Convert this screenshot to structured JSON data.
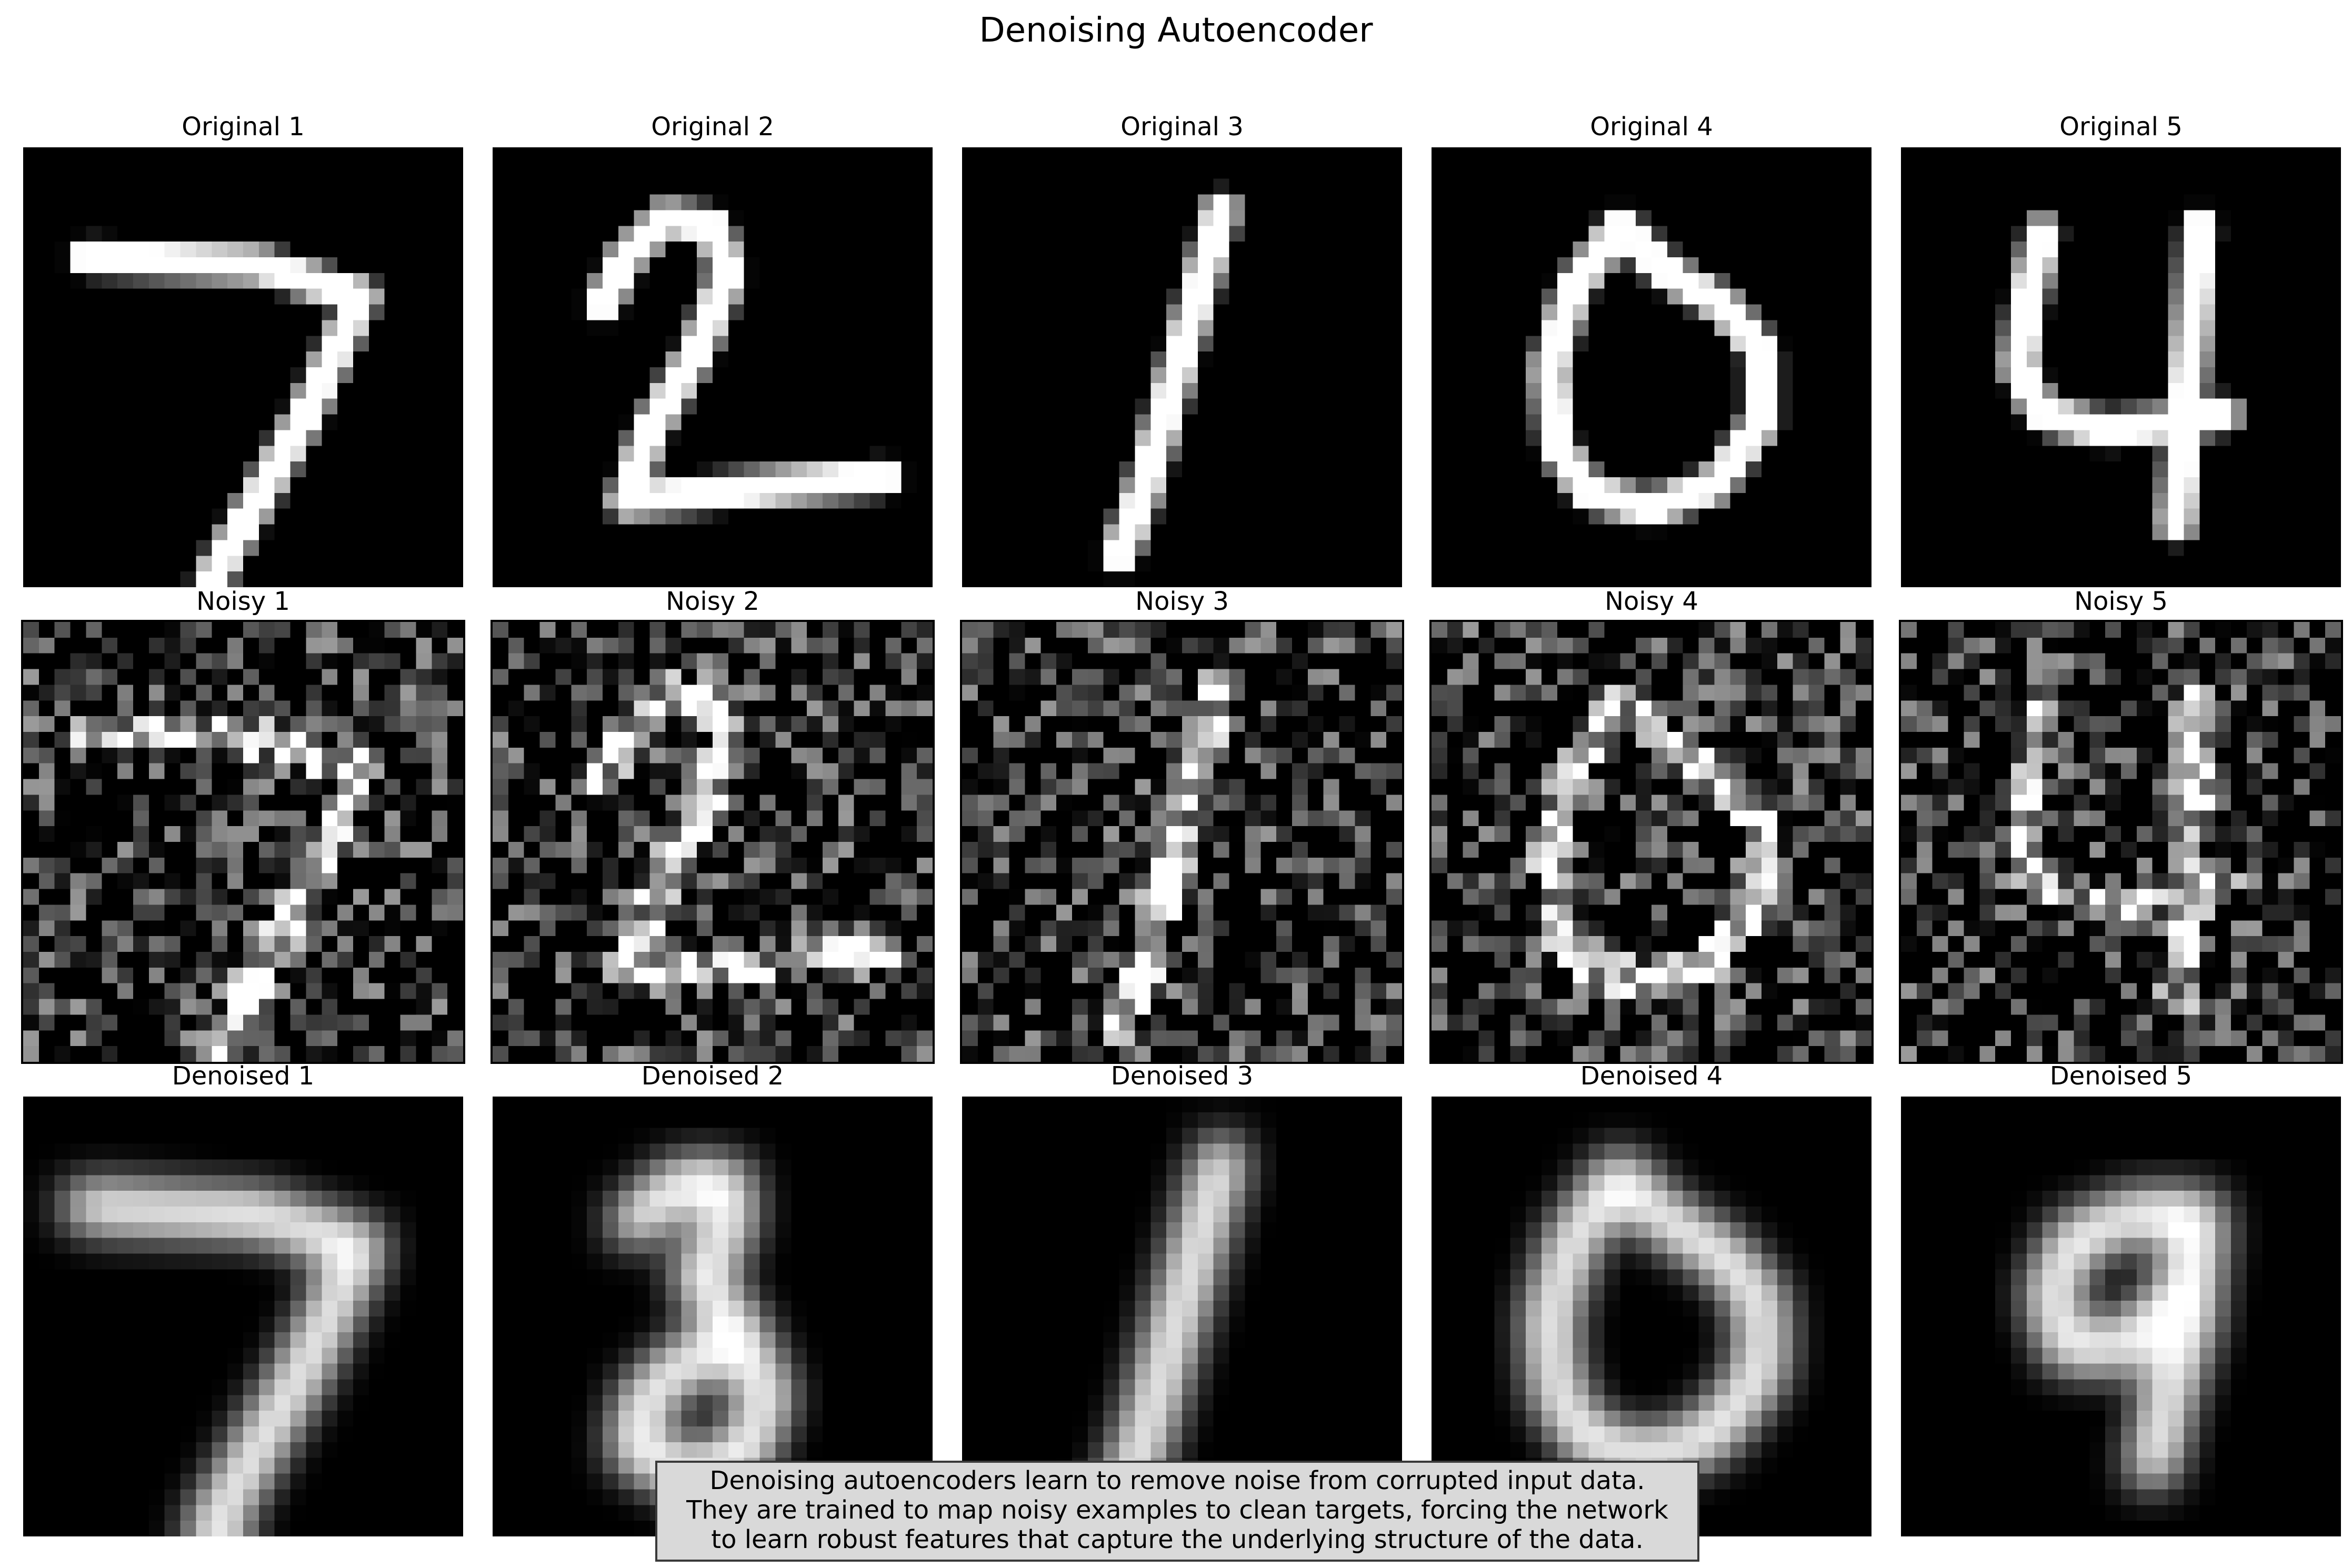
{
  "figure": {
    "title": "Denoising Autoencoder",
    "rows": [
      {
        "kind": "original",
        "label_prefix": "Original",
        "titles": [
          "Original 1",
          "Original 2",
          "Original 3",
          "Original 4",
          "Original 5"
        ]
      },
      {
        "kind": "noisy",
        "label_prefix": "Noisy",
        "titles": [
          "Noisy 1",
          "Noisy 2",
          "Noisy 3",
          "Noisy 4",
          "Noisy 5"
        ]
      },
      {
        "kind": "denoised",
        "label_prefix": "Denoised",
        "titles": [
          "Denoised 1",
          "Denoised 2",
          "Denoised 3",
          "Denoised 4",
          "Denoised 5"
        ]
      }
    ],
    "digits_original": [
      "7",
      "2",
      "1",
      "0",
      "4"
    ],
    "digits_denoised": [
      "7",
      "3",
      "1",
      "0",
      "9"
    ],
    "colormap": "gray",
    "caption_lines": [
      "Denoising autoencoders learn to remove noise from corrupted input data.",
      "They are trained to map noisy examples to clean targets, forcing the network",
      "to learn robust features that capture the underlying structure of the data."
    ]
  }
}
